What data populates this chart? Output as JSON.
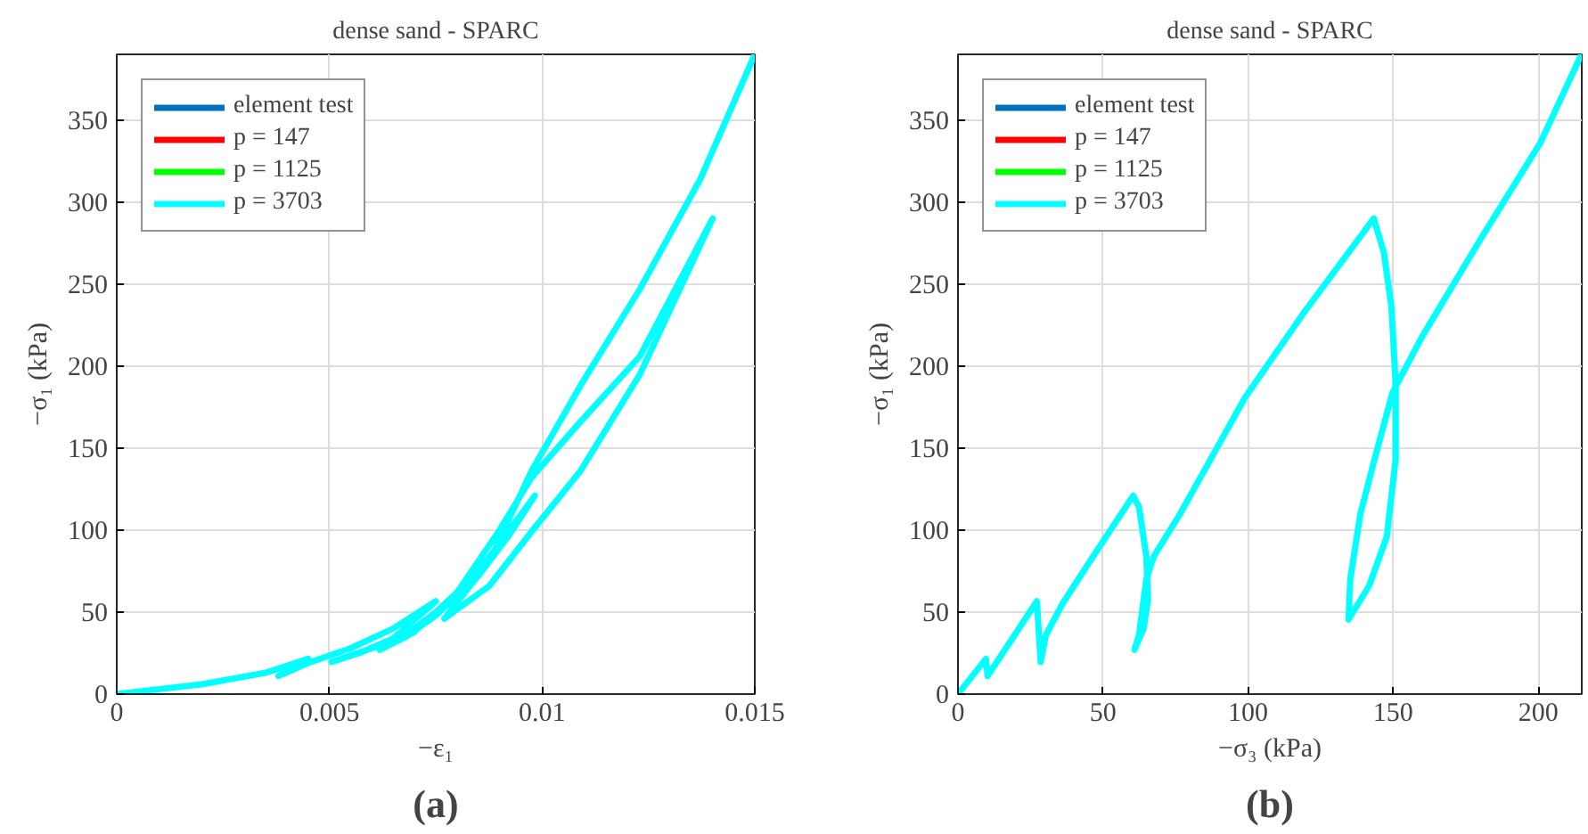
{
  "chart_data": [
    {
      "type": "line",
      "title": "dense sand - SPARC",
      "xlabel": "−ε₁",
      "ylabel": "−σ₁ (kPa)",
      "annotations": [
        "(a)"
      ],
      "x": [
        0,
        0.002,
        0.0035,
        0.0045,
        0.0038,
        0.0045,
        0.0055,
        0.0065,
        0.0075,
        0.0065,
        0.0057,
        0.00505,
        0.006,
        0.007,
        0.008,
        0.0088,
        0.00983,
        0.0092,
        0.0085,
        0.0075,
        0.0068,
        0.00618,
        0.007,
        0.008,
        0.009,
        0.00975,
        0.0109,
        0.0123,
        0.01401,
        0.01358,
        0.0123,
        0.0109,
        0.00975,
        0.00876,
        0.0077,
        0.00876,
        0.00975,
        0.0109,
        0.0123,
        0.01372,
        0.015
      ],
      "series": [
        {
          "name": "element test",
          "color": "#0072bd",
          "values": [
            null,
            null,
            null,
            null,
            null,
            null,
            null,
            null,
            null,
            null,
            null,
            null,
            null,
            null,
            null,
            null,
            null,
            null,
            null,
            null,
            null,
            null,
            null,
            null,
            null,
            null,
            null,
            null,
            null,
            null,
            null,
            null,
            null,
            null,
            null,
            null,
            null,
            null,
            null,
            null,
            null
          ]
        },
        {
          "name": "p = 147",
          "color": "#ff0000",
          "values": [
            null,
            null,
            null,
            null,
            null,
            null,
            null,
            null,
            null,
            null,
            null,
            null,
            null,
            null,
            null,
            null,
            null,
            null,
            null,
            null,
            null,
            null,
            null,
            null,
            null,
            null,
            null,
            null,
            null,
            null,
            null,
            null,
            null,
            null,
            null,
            null,
            null,
            null,
            null,
            null,
            null
          ]
        },
        {
          "name": "p = 1125",
          "color": "#00ff00",
          "values": [
            null,
            null,
            null,
            null,
            null,
            null,
            null,
            null,
            null,
            null,
            null,
            null,
            null,
            null,
            null,
            null,
            null,
            null,
            null,
            null,
            null,
            null,
            null,
            null,
            null,
            null,
            null,
            null,
            null,
            null,
            null,
            null,
            null,
            null,
            null,
            null,
            null,
            null,
            null,
            null,
            null
          ]
        },
        {
          "name": "p = 3703",
          "color": "#00ffff",
          "values": [
            0,
            6,
            13,
            21.5,
            11,
            19,
            28,
            40,
            56.6,
            34,
            25,
            19.6,
            28,
            40,
            60,
            85,
            121,
            96,
            72,
            48,
            35,
            27,
            38,
            62,
            100,
            132,
            166,
            206,
            290,
            266,
            195,
            136,
            99,
            66,
            46,
            81,
            136,
            188,
            247,
            314,
            390
          ]
        }
      ],
      "xlim": [
        0,
        0.015
      ],
      "ylim": [
        0,
        390
      ],
      "xticks": [
        0,
        0.005,
        0.01,
        0.015
      ],
      "yticks": [
        0,
        50,
        100,
        150,
        200,
        250,
        300,
        350
      ],
      "grid": true,
      "legend": "top left"
    },
    {
      "type": "line",
      "title": "dense sand - SPARC",
      "xlabel": "−σ₃ (kPa)",
      "ylabel": "−σ₁ (kPa)",
      "annotations": [
        "(b)"
      ],
      "x": [
        0,
        9.6,
        10.2,
        27.2,
        28.5,
        30.3,
        36,
        44,
        60.4,
        62.4,
        64.9,
        65.5,
        64,
        60.8,
        62.4,
        64.9,
        67.5,
        76.6,
        99,
        119,
        143.3,
        146.8,
        149.4,
        150.9,
        150.9,
        147.8,
        141.7,
        134.6,
        135.2,
        138.7,
        143.7,
        149.8,
        160,
        180,
        200.7,
        214.9
      ],
      "series": [
        {
          "name": "element test",
          "color": "#0072bd",
          "values": [
            null,
            null,
            null,
            null,
            null,
            null,
            null,
            null,
            null,
            null,
            null,
            null,
            null,
            null,
            null,
            null,
            null,
            null,
            null,
            null,
            null,
            null,
            null,
            null,
            null,
            null,
            null,
            null,
            null,
            null,
            null,
            null,
            null,
            null,
            null,
            null
          ]
        },
        {
          "name": "p = 147",
          "color": "#ff0000",
          "values": [
            null,
            null,
            null,
            null,
            null,
            null,
            null,
            null,
            null,
            null,
            null,
            null,
            null,
            null,
            null,
            null,
            null,
            null,
            null,
            null,
            null,
            null,
            null,
            null,
            null,
            null,
            null,
            null,
            null,
            null,
            null,
            null,
            null,
            null,
            null,
            null
          ]
        },
        {
          "name": "p = 1125",
          "color": "#00ff00",
          "values": [
            null,
            null,
            null,
            null,
            null,
            null,
            null,
            null,
            null,
            null,
            null,
            null,
            null,
            null,
            null,
            null,
            null,
            null,
            null,
            null,
            null,
            null,
            null,
            null,
            null,
            null,
            null,
            null,
            null,
            null,
            null,
            null,
            null,
            null,
            null,
            null
          ]
        },
        {
          "name": "p = 3703",
          "color": "#00ffff",
          "values": [
            0,
            21.5,
            11,
            56.6,
            19.6,
            36,
            55,
            77,
            121,
            114,
            84,
            58,
            40,
            27,
            36,
            70,
            84,
            110,
            181,
            232,
            290,
            269,
            236,
            188,
            144,
            96,
            66,
            45.5,
            70,
            110,
            144,
            184,
            218,
            277,
            336,
            390
          ]
        }
      ],
      "xlim": [
        0,
        215
      ],
      "ylim": [
        0,
        390
      ],
      "xticks": [
        0,
        50,
        100,
        150,
        200
      ],
      "yticks": [
        0,
        50,
        100,
        150,
        200,
        250,
        300,
        350
      ],
      "grid": true,
      "legend": "top left"
    }
  ]
}
